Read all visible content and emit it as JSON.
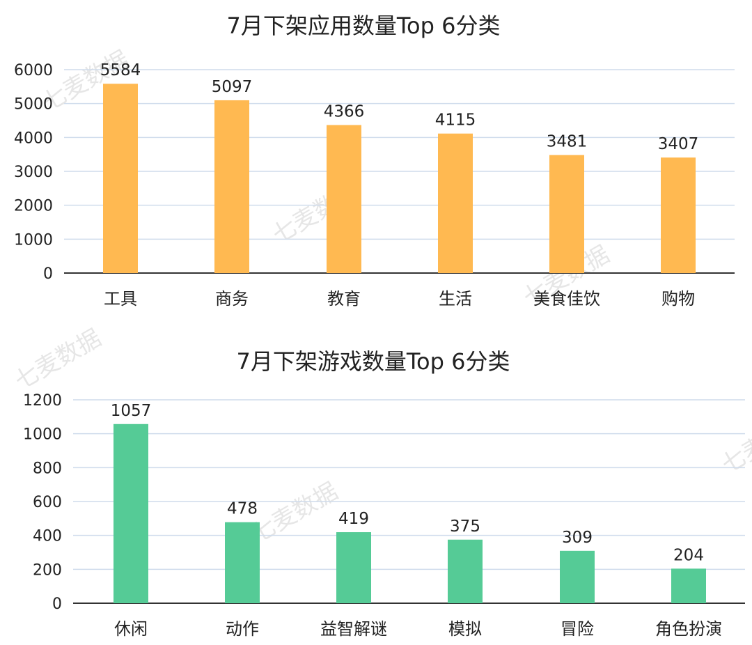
{
  "chart_data": [
    {
      "type": "bar",
      "title": "7月下架应用数量Top 6分类",
      "categories": [
        "工具",
        "商务",
        "教育",
        "生活",
        "美食佳饮",
        "购物"
      ],
      "values": [
        5584,
        5097,
        4366,
        4115,
        3481,
        3407
      ],
      "yticks": [
        "0",
        "1000",
        "2000",
        "3000",
        "4000",
        "5000",
        "6000"
      ],
      "ylim": [
        0,
        6000
      ],
      "grid": true,
      "color": "#FFB951"
    },
    {
      "type": "bar",
      "title": "7月下架游戏数量Top 6分类",
      "categories": [
        "休闲",
        "动作",
        "益智解谜",
        "模拟",
        "冒险",
        "角色扮演"
      ],
      "values": [
        1057,
        478,
        419,
        375,
        309,
        204
      ],
      "yticks": [
        "0",
        "200",
        "400",
        "600",
        "800",
        "1000",
        "1200"
      ],
      "ylim": [
        0,
        1200
      ],
      "grid": true,
      "color": "#55CB96"
    }
  ],
  "watermark": "七麦数据"
}
